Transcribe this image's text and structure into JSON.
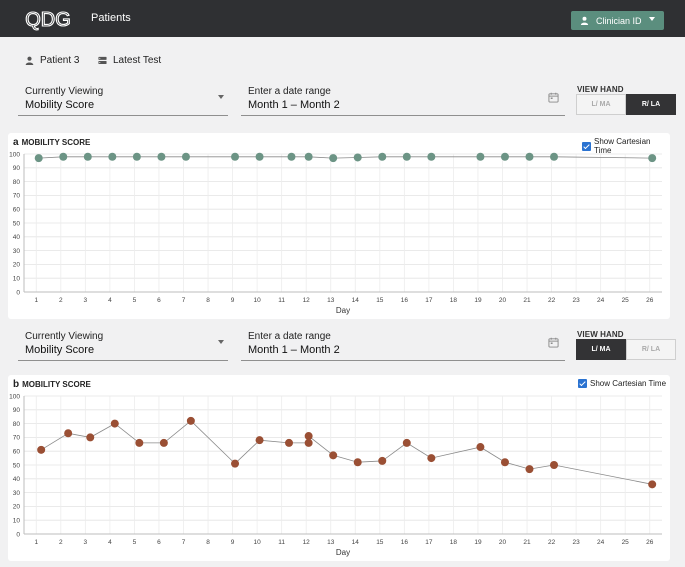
{
  "header": {
    "logo_text": "QDG",
    "app_title": "Patients",
    "clinician_button": "Clinician ID"
  },
  "nav": {
    "patient": "Patient 3",
    "latest_test": "Latest Test"
  },
  "icons": {
    "patient": "person-icon",
    "latest_test": "server-icon",
    "date": "calendar-icon",
    "dropdown": "chevron-down-icon"
  },
  "colors": {
    "header_bg": "#2f3033",
    "accent": "#5b8e7e",
    "series_a": "#6c9485",
    "series_b": "#9a4f34"
  },
  "panels": [
    {
      "id": "a",
      "controls": {
        "viewing_label": "Currently Viewing",
        "viewing_value": "Mobility Score",
        "date_label": "Enter a date range",
        "date_value": "Month 1 – Month 2",
        "view_hand_title": "VIEW HAND",
        "hand_left": "L/ MA",
        "hand_right": "R/ LA",
        "selected_hand": "right"
      },
      "letter": "a",
      "title": "MOBILITY SCORE",
      "cartesian_label": "Show Cartesian Time",
      "cartesian_checked": true
    },
    {
      "id": "b",
      "controls": {
        "viewing_label": "Currently Viewing",
        "viewing_value": "Mobility Score",
        "date_label": "Enter a date range",
        "date_value": "Month 1 – Month 2",
        "view_hand_title": "VIEW HAND",
        "hand_left": "L/ MA",
        "hand_right": "R/ LA",
        "selected_hand": "left"
      },
      "letter": "b",
      "title": "MOBILITY SCORE",
      "cartesian_label": "Show Cartesian Time",
      "cartesian_checked": true
    }
  ],
  "chart_data": [
    {
      "type": "line",
      "title": "MOBILITY SCORE",
      "xlabel": "Day",
      "ylabel": "",
      "xlim": [
        0.5,
        26.5
      ],
      "ylim": [
        0,
        100
      ],
      "x_ticks": [
        1,
        2,
        3,
        4,
        5,
        6,
        7,
        8,
        9,
        10,
        11,
        12,
        13,
        14,
        15,
        16,
        17,
        18,
        19,
        20,
        21,
        22,
        23,
        24,
        25,
        26
      ],
      "y_ticks": [
        0,
        10,
        20,
        30,
        40,
        50,
        60,
        70,
        80,
        90,
        100
      ],
      "grid": true,
      "legend": "none",
      "color": "#6c9485",
      "points": [
        {
          "x": 1.1,
          "y": 97
        },
        {
          "x": 2.1,
          "y": 98
        },
        {
          "x": 3.1,
          "y": 98
        },
        {
          "x": 4.1,
          "y": 98
        },
        {
          "x": 5.1,
          "y": 98
        },
        {
          "x": 6.1,
          "y": 98
        },
        {
          "x": 7.1,
          "y": 98
        },
        {
          "x": 9.1,
          "y": 98
        },
        {
          "x": 10.1,
          "y": 98
        },
        {
          "x": 11.4,
          "y": 98
        },
        {
          "x": 12.1,
          "y": 98
        },
        {
          "x": 13.1,
          "y": 97
        },
        {
          "x": 14.1,
          "y": 97.5
        },
        {
          "x": 15.1,
          "y": 98
        },
        {
          "x": 16.1,
          "y": 98
        },
        {
          "x": 17.1,
          "y": 98
        },
        {
          "x": 19.1,
          "y": 98
        },
        {
          "x": 20.1,
          "y": 98
        },
        {
          "x": 21.1,
          "y": 98
        },
        {
          "x": 22.1,
          "y": 98
        },
        {
          "x": 26.1,
          "y": 97
        }
      ]
    },
    {
      "type": "line",
      "title": "MOBILITY SCORE",
      "xlabel": "Day",
      "ylabel": "",
      "xlim": [
        0.5,
        26.5
      ],
      "ylim": [
        0,
        100
      ],
      "x_ticks": [
        1,
        2,
        3,
        4,
        5,
        6,
        7,
        8,
        9,
        10,
        11,
        12,
        13,
        14,
        15,
        16,
        17,
        18,
        19,
        20,
        21,
        22,
        23,
        24,
        25,
        26
      ],
      "y_ticks": [
        0,
        10,
        20,
        30,
        40,
        50,
        60,
        70,
        80,
        90,
        100
      ],
      "grid": true,
      "legend": "none",
      "color": "#9a4f34",
      "points": [
        {
          "x": 1.2,
          "y": 61
        },
        {
          "x": 2.3,
          "y": 73
        },
        {
          "x": 3.2,
          "y": 70
        },
        {
          "x": 4.2,
          "y": 80
        },
        {
          "x": 5.2,
          "y": 66
        },
        {
          "x": 6.2,
          "y": 66
        },
        {
          "x": 7.3,
          "y": 82
        },
        {
          "x": 9.1,
          "y": 51
        },
        {
          "x": 10.1,
          "y": 68
        },
        {
          "x": 11.3,
          "y": 66
        },
        {
          "x": 12.1,
          "y": 66
        },
        {
          "x": 12.1,
          "y": 71
        },
        {
          "x": 13.1,
          "y": 57
        },
        {
          "x": 14.1,
          "y": 52
        },
        {
          "x": 15.1,
          "y": 53
        },
        {
          "x": 16.1,
          "y": 66
        },
        {
          "x": 17.1,
          "y": 55
        },
        {
          "x": 19.1,
          "y": 63
        },
        {
          "x": 20.1,
          "y": 52
        },
        {
          "x": 21.1,
          "y": 47
        },
        {
          "x": 22.1,
          "y": 50
        },
        {
          "x": 26.1,
          "y": 36
        }
      ]
    }
  ]
}
